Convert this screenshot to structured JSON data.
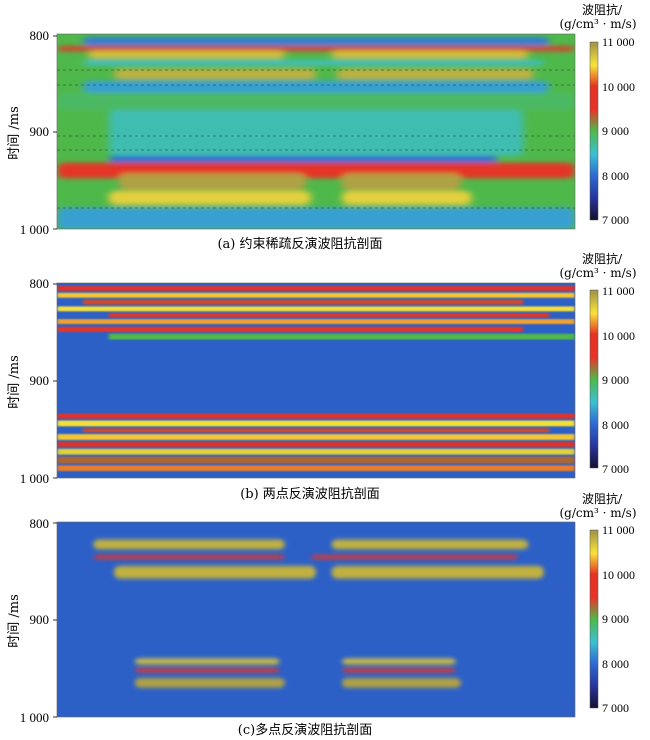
{
  "chart_data": [
    {
      "type": "heatmap",
      "panel": "a",
      "caption": "(a) 约束稀疏反演波阻抗剖面",
      "ylabel": "时间 /ms",
      "yticks": [
        "800",
        "900",
        "1 000"
      ],
      "ylim": [
        800,
        1000
      ],
      "colorbar": {
        "title1": "波阻抗/",
        "title2": "(g/cm³ · m/s)",
        "ticks": [
          "11 000",
          "10 000",
          "9 000",
          "8 000",
          "7 000"
        ],
        "range": [
          7000,
          11000
        ]
      },
      "background": 9000,
      "regions": [
        {
          "x": [
            0.05,
            0.95
          ],
          "y": [
            803,
            812
          ],
          "v": 8100
        },
        {
          "x": [
            0.0,
            1.0
          ],
          "y": [
            812,
            818
          ],
          "v": 9400
        },
        {
          "x": [
            0.06,
            0.44
          ],
          "y": [
            817,
            825
          ],
          "v": 10700
        },
        {
          "x": [
            0.53,
            0.91
          ],
          "y": [
            817,
            825
          ],
          "v": 10700
        },
        {
          "x": [
            0.05,
            0.94
          ],
          "y": [
            827,
            832
          ],
          "v": 8500
        },
        {
          "x": [
            0.11,
            0.5
          ],
          "y": [
            836,
            846
          ],
          "v": 10800
        },
        {
          "x": [
            0.54,
            0.92
          ],
          "y": [
            836,
            846
          ],
          "v": 10800
        },
        {
          "x": [
            0.05,
            0.95
          ],
          "y": [
            848,
            860
          ],
          "v": 8300
        },
        {
          "x": [
            0.0,
            1.0
          ],
          "y": [
            860,
            878
          ],
          "v": 8900
        },
        {
          "x": [
            0.1,
            0.9
          ],
          "y": [
            878,
            925
          ],
          "v": 8600
        },
        {
          "x": [
            0.1,
            0.85
          ],
          "y": [
            925,
            932
          ],
          "v": 8000
        },
        {
          "x": [
            0.0,
            1.0
          ],
          "y": [
            932,
            948
          ],
          "v": 9600
        },
        {
          "x": [
            0.12,
            0.48
          ],
          "y": [
            943,
            960
          ],
          "v": 10900
        },
        {
          "x": [
            0.55,
            0.78
          ],
          "y": [
            943,
            960
          ],
          "v": 10900
        },
        {
          "x": [
            0.1,
            0.49
          ],
          "y": [
            961,
            975
          ],
          "v": 10600
        },
        {
          "x": [
            0.55,
            0.8
          ],
          "y": [
            961,
            975
          ],
          "v": 10600
        },
        {
          "x": [
            0.0,
            1.0
          ],
          "y": [
            978,
            1000
          ],
          "v": 8300
        }
      ]
    },
    {
      "type": "heatmap",
      "panel": "b",
      "caption": "(b) 两点反演波阻抗剖面",
      "ylabel": "时间 /ms",
      "yticks": [
        "800",
        "900",
        "1 000"
      ],
      "ylim": [
        800,
        1000
      ],
      "colorbar": {
        "title1": "波阻抗/",
        "title2": "(g/cm³ · m/s)",
        "ticks": [
          "11 000",
          "10 000",
          "9 000",
          "8 000",
          "7 000"
        ],
        "range": [
          7000,
          11000
        ]
      },
      "background": 7900,
      "regions": [
        {
          "x": [
            0.0,
            1.0
          ],
          "y": [
            803,
            808
          ],
          "v": 9800
        },
        {
          "x": [
            0.0,
            1.0
          ],
          "y": [
            810,
            815
          ],
          "v": 10400
        },
        {
          "x": [
            0.05,
            0.9
          ],
          "y": [
            817,
            822
          ],
          "v": 9400
        },
        {
          "x": [
            0.0,
            1.0
          ],
          "y": [
            824,
            829
          ],
          "v": 10500
        },
        {
          "x": [
            0.1,
            0.95
          ],
          "y": [
            831,
            835
          ],
          "v": 9600
        },
        {
          "x": [
            0.0,
            1.0
          ],
          "y": [
            837,
            842
          ],
          "v": 10300
        },
        {
          "x": [
            0.0,
            0.9
          ],
          "y": [
            845,
            850
          ],
          "v": 9500
        },
        {
          "x": [
            0.1,
            1.0
          ],
          "y": [
            852,
            858
          ],
          "v": 9000
        },
        {
          "x": [
            0.0,
            1.0
          ],
          "y": [
            934,
            939
          ],
          "v": 9800
        },
        {
          "x": [
            0.0,
            1.0
          ],
          "y": [
            941,
            947
          ],
          "v": 10500
        },
        {
          "x": [
            0.05,
            0.95
          ],
          "y": [
            949,
            953
          ],
          "v": 9400
        },
        {
          "x": [
            0.0,
            1.0
          ],
          "y": [
            955,
            961
          ],
          "v": 10400
        },
        {
          "x": [
            0.0,
            1.0
          ],
          "y": [
            963,
            968
          ],
          "v": 10000
        },
        {
          "x": [
            0.0,
            1.0
          ],
          "y": [
            970,
            976
          ],
          "v": 10600
        },
        {
          "x": [
            0.0,
            1.0
          ],
          "y": [
            978,
            985
          ],
          "v": 9300
        },
        {
          "x": [
            0.0,
            1.0
          ],
          "y": [
            987,
            993
          ],
          "v": 10200
        }
      ]
    },
    {
      "type": "heatmap",
      "panel": "c",
      "caption": "(c)多点反演波阻抗剖面",
      "ylabel": "时间 /ms",
      "yticks": [
        "800",
        "900",
        "1 000"
      ],
      "ylim": [
        800,
        1000
      ],
      "colorbar": {
        "title1": "波阻抗/",
        "title2": "(g/cm³ · m/s)",
        "ticks": [
          "11 000",
          "10 000",
          "9 000",
          "8 000",
          "7 000"
        ],
        "range": [
          7000,
          11000
        ]
      },
      "background": 7900,
      "regions": [
        {
          "x": [
            0.07,
            0.44
          ],
          "y": [
            818,
            828
          ],
          "v": 10800
        },
        {
          "x": [
            0.53,
            0.91
          ],
          "y": [
            818,
            828
          ],
          "v": 10800
        },
        {
          "x": [
            0.07,
            0.44
          ],
          "y": [
            834,
            838
          ],
          "v": 9600
        },
        {
          "x": [
            0.49,
            0.89
          ],
          "y": [
            834,
            838
          ],
          "v": 9600
        },
        {
          "x": [
            0.11,
            0.5
          ],
          "y": [
            845,
            858
          ],
          "v": 10800
        },
        {
          "x": [
            0.53,
            0.94
          ],
          "y": [
            845,
            858
          ],
          "v": 10800
        },
        {
          "x": [
            0.15,
            0.43
          ],
          "y": [
            940,
            946
          ],
          "v": 10700
        },
        {
          "x": [
            0.55,
            0.77
          ],
          "y": [
            940,
            946
          ],
          "v": 10700
        },
        {
          "x": [
            0.15,
            0.43
          ],
          "y": [
            950,
            954
          ],
          "v": 9500
        },
        {
          "x": [
            0.55,
            0.77
          ],
          "y": [
            950,
            954
          ],
          "v": 9500
        },
        {
          "x": [
            0.15,
            0.44
          ],
          "y": [
            960,
            970
          ],
          "v": 10900
        },
        {
          "x": [
            0.55,
            0.78
          ],
          "y": [
            960,
            970
          ],
          "v": 10900
        }
      ]
    }
  ]
}
